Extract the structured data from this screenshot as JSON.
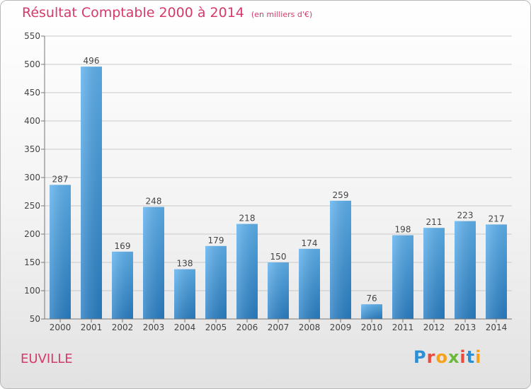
{
  "title": "Résultat Comptable 2000 à 2014",
  "unit_note": "(en milliers d'€)",
  "commune": "EUVILLE",
  "logo": {
    "letters": [
      "P",
      "r",
      "o",
      "x",
      "i",
      "t",
      "i"
    ],
    "colors": [
      "#2b8fd6",
      "#e94b3c",
      "#f6a21b",
      "#6bb83a",
      "#e94b3c",
      "#2b8fd6",
      "#f6a21b"
    ]
  },
  "chart_data": {
    "type": "bar",
    "title": "Résultat Comptable 2000 à 2014",
    "ylabel": "en milliers d'€",
    "categories": [
      "2000",
      "2001",
      "2002",
      "2003",
      "2004",
      "2005",
      "2006",
      "2007",
      "2008",
      "2009",
      "2010",
      "2011",
      "2012",
      "2013",
      "2014"
    ],
    "values": [
      287,
      496,
      169,
      248,
      138,
      179,
      218,
      150,
      174,
      259,
      76,
      198,
      211,
      223,
      217
    ],
    "ylim": [
      50,
      550
    ],
    "yticks": [
      50,
      100,
      150,
      200,
      250,
      300,
      350,
      400,
      450,
      500,
      550
    ],
    "grid": true,
    "bar_color": "#3d98de"
  }
}
